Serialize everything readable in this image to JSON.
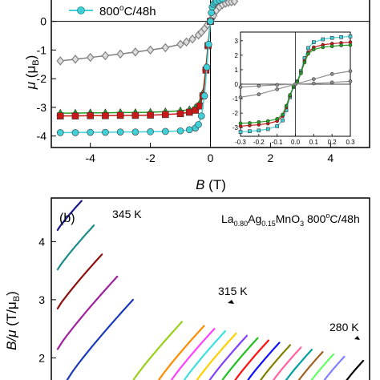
{
  "chart_data": [
    {
      "type": "line",
      "panel_label": "",
      "xlabel": {
        "symbol": "B",
        "unit": "(T)"
      },
      "ylabel": {
        "symbol": "μ",
        "unit": "(μ",
        "unit_sub": "B",
        "unit_close": ")"
      },
      "xlim": [
        -5.3,
        5.3
      ],
      "ylim": [
        -4.4,
        0.8
      ],
      "x_ticks": [
        -4,
        -2,
        0,
        2,
        4
      ],
      "x_tick_labels": [
        "-4",
        "-2",
        "0",
        "2",
        "4"
      ],
      "y_ticks": [
        0,
        -1,
        -2,
        -3,
        -4
      ],
      "y_tick_labels": [
        "0",
        "-1",
        "-2",
        "-3",
        "-4"
      ],
      "legend": {
        "text": "800",
        "sup": "o",
        "tail": "C/48h",
        "color": "#40d0d8",
        "placement": "top-left"
      },
      "series": [
        {
          "marker": "diamond",
          "color": "#808080",
          "x": [
            -5.0,
            -4.5,
            -4.0,
            -3.5,
            -3.0,
            -2.5,
            -2.0,
            -1.5,
            -1.0,
            -0.8,
            -0.6,
            -0.4,
            -0.3,
            -0.2,
            -0.1,
            0.0
          ],
          "y": [
            -1.38,
            -1.32,
            -1.26,
            -1.2,
            -1.14,
            -1.07,
            -1.0,
            -0.92,
            -0.8,
            -0.72,
            -0.62,
            -0.48,
            -0.38,
            -0.26,
            -0.12,
            0.0
          ]
        },
        {
          "marker": "diamond",
          "color": "#808080",
          "x": [
            0.05,
            0.1,
            0.2,
            0.3,
            0.4,
            0.5,
            0.6,
            0.7,
            0.8
          ],
          "y": [
            0.1,
            0.2,
            0.38,
            0.5,
            0.58,
            0.63,
            0.66,
            0.68,
            0.7
          ]
        },
        {
          "marker": "triangle",
          "color": "#20a020",
          "x": [
            -5.0,
            -4.5,
            -4.0,
            -3.5,
            -3.0,
            -2.5,
            -2.0,
            -1.5,
            -1.0,
            -0.7,
            -0.5,
            -0.35,
            -0.25,
            -0.15,
            -0.08,
            0.0
          ],
          "y": [
            -3.2,
            -3.2,
            -3.19,
            -3.19,
            -3.18,
            -3.18,
            -3.17,
            -3.15,
            -3.12,
            -3.08,
            -3.0,
            -2.85,
            -2.5,
            -1.6,
            -0.8,
            0.0
          ]
        },
        {
          "marker": "square",
          "color": "#c81818",
          "x": [
            -5.0,
            -4.5,
            -4.0,
            -3.5,
            -3.0,
            -2.5,
            -2.0,
            -1.5,
            -1.0,
            -0.7,
            -0.5,
            -0.35,
            -0.25,
            -0.15,
            -0.08,
            0.0
          ],
          "y": [
            -3.3,
            -3.3,
            -3.29,
            -3.29,
            -3.28,
            -3.28,
            -3.27,
            -3.25,
            -3.22,
            -3.17,
            -3.1,
            -2.95,
            -2.6,
            -1.7,
            -0.85,
            0.0
          ]
        },
        {
          "marker": "circle",
          "color": "#40d0d8",
          "x": [
            -5.0,
            -4.5,
            -4.0,
            -3.5,
            -3.0,
            -2.5,
            -2.0,
            -1.5,
            -1.0,
            -0.7,
            -0.5,
            -0.4,
            -0.3,
            -0.2,
            -0.12,
            -0.06,
            0.0
          ],
          "y": [
            -3.88,
            -3.88,
            -3.87,
            -3.87,
            -3.86,
            -3.86,
            -3.85,
            -3.84,
            -3.82,
            -3.78,
            -3.72,
            -3.6,
            -3.3,
            -2.6,
            -1.6,
            -0.8,
            0.0
          ]
        },
        {
          "marker": "circle",
          "color": "#40d0d8",
          "x": [
            0.03,
            0.06,
            0.1,
            0.15,
            0.2,
            0.3,
            0.4
          ],
          "y": [
            0.3,
            0.5,
            0.6,
            0.66,
            0.7,
            0.74,
            0.78
          ]
        }
      ],
      "inset": {
        "xlim": [
          -0.3,
          0.3
        ],
        "ylim": [
          -3.6,
          3.6
        ],
        "x_ticks": [
          -0.3,
          -0.2,
          -0.1,
          0.0,
          0.1,
          0.2,
          0.3
        ],
        "x_tick_labels": [
          "-0.3",
          "-0.2",
          "-0.1",
          "0.0",
          "0.1",
          "0.2",
          "0.3"
        ],
        "y_ticks": [
          3,
          2,
          1,
          0,
          -1,
          -2,
          -3
        ],
        "y_tick_labels": [
          "3",
          "2",
          "1",
          "0",
          "-1",
          "-2",
          "-3"
        ],
        "series": [
          {
            "color": "#40d0d8",
            "marker": "square",
            "x": [
              -0.3,
              -0.25,
              -0.2,
              -0.15,
              -0.1,
              -0.07,
              -0.05,
              -0.03,
              -0.01,
              0.01,
              0.03,
              0.05,
              0.07,
              0.1,
              0.15,
              0.2,
              0.25,
              0.3
            ],
            "y": [
              -3.3,
              -3.25,
              -3.2,
              -3.1,
              -2.9,
              -2.5,
              -1.8,
              -0.9,
              -0.2,
              0.2,
              0.9,
              1.8,
              2.5,
              2.9,
              3.1,
              3.2,
              3.25,
              3.3
            ]
          },
          {
            "color": "#c81818",
            "marker": "circle",
            "x": [
              -0.3,
              -0.25,
              -0.2,
              -0.15,
              -0.1,
              -0.07,
              -0.05,
              -0.03,
              -0.01,
              0.01,
              0.03,
              0.05,
              0.07,
              0.1,
              0.15,
              0.2,
              0.25,
              0.3
            ],
            "y": [
              -2.9,
              -2.85,
              -2.8,
              -2.72,
              -2.55,
              -2.2,
              -1.6,
              -0.8,
              -0.15,
              0.15,
              0.8,
              1.6,
              2.2,
              2.55,
              2.72,
              2.8,
              2.85,
              2.9
            ]
          },
          {
            "color": "#20a020",
            "marker": "circle",
            "x": [
              -0.3,
              -0.25,
              -0.2,
              -0.15,
              -0.1,
              -0.07,
              -0.05,
              -0.03,
              -0.01,
              0.01,
              0.03,
              0.05,
              0.07,
              0.1,
              0.15,
              0.2,
              0.25,
              0.3
            ],
            "y": [
              -2.7,
              -2.68,
              -2.62,
              -2.55,
              -2.4,
              -2.1,
              -1.5,
              -0.75,
              -0.12,
              0.12,
              0.75,
              1.5,
              2.1,
              2.4,
              2.55,
              2.62,
              2.68,
              2.7
            ]
          },
          {
            "color": "#909090",
            "marker": "circle",
            "x": [
              -0.3,
              -0.2,
              -0.1,
              0.0,
              0.1,
              0.2,
              0.3
            ],
            "y": [
              -0.9,
              -0.7,
              -0.35,
              0.0,
              0.35,
              0.7,
              0.9
            ]
          },
          {
            "color": "#909090",
            "marker": "circle",
            "x": [
              -0.3,
              -0.2,
              -0.1,
              0.0,
              0.1,
              0.2,
              0.3
            ],
            "y": [
              -0.2,
              -0.12,
              -0.05,
              0.0,
              0.05,
              0.12,
              0.2
            ]
          }
        ]
      }
    },
    {
      "type": "line",
      "panel_label": "(b)",
      "xlabel": "",
      "ylabel": {
        "symbol": "B/μ",
        "unit": "(T/μ",
        "unit_sub": "B",
        "unit_close": ")"
      },
      "ylim": [
        1.55,
        4.75
      ],
      "y_ticks": [
        4,
        3,
        2
      ],
      "y_tick_labels": [
        "4",
        "3",
        "2"
      ],
      "annotation": {
        "parts": [
          "La",
          "0.80",
          "Ag",
          "0.15",
          "MnO",
          "3",
          " 800",
          "o",
          "C/48h"
        ]
      },
      "temperature_labels": [
        "345 K",
        "315 K",
        "280 K"
      ],
      "curves": [
        {
          "color": "#1a1a8c",
          "x0": 0.02,
          "y0": 4.2,
          "y1": 4.7
        },
        {
          "color": "#1f8c8c",
          "x0": 0.02,
          "y0": 3.52,
          "y1": 4.28
        },
        {
          "color": "#8c1010",
          "x0": 0.02,
          "y0": 2.85,
          "y1": 3.78
        },
        {
          "color": "#a020a0",
          "x0": 0.02,
          "y0": 2.15,
          "y1": 3.4
        },
        {
          "color": "#1a3ab8",
          "x0": 0.05,
          "y0": 1.62,
          "y1": 3.0
        },
        {
          "color": "#98d018",
          "x0": 0.25,
          "y0": 1.55,
          "y1": 2.62
        },
        {
          "color": "#ff8c00",
          "x0": 0.33,
          "y0": 1.55,
          "y1": 2.55
        },
        {
          "color": "#ff40ff",
          "x0": 0.37,
          "y0": 1.55,
          "y1": 2.5
        },
        {
          "color": "#40e0e0",
          "x0": 0.41,
          "y0": 1.55,
          "y1": 2.46
        },
        {
          "color": "#ffd000",
          "x0": 0.45,
          "y0": 1.55,
          "y1": 2.42
        },
        {
          "color": "#8040ff",
          "x0": 0.49,
          "y0": 1.55,
          "y1": 2.38
        },
        {
          "color": "#20c020",
          "x0": 0.53,
          "y0": 1.55,
          "y1": 2.34
        },
        {
          "color": "#ff1010",
          "x0": 0.57,
          "y0": 1.55,
          "y1": 2.3
        },
        {
          "color": "#1010ff",
          "x0": 0.61,
          "y0": 1.55,
          "y1": 2.26
        },
        {
          "color": "#808000",
          "x0": 0.65,
          "y0": 1.55,
          "y1": 2.22
        },
        {
          "color": "#ff60a0",
          "x0": 0.69,
          "y0": 1.55,
          "y1": 2.18
        },
        {
          "color": "#00a0a0",
          "x0": 0.73,
          "y0": 1.55,
          "y1": 2.14
        },
        {
          "color": "#a06020",
          "x0": 0.77,
          "y0": 1.55,
          "y1": 2.1
        },
        {
          "color": "#60ff60",
          "x0": 0.81,
          "y0": 1.55,
          "y1": 2.06
        },
        {
          "color": "#8080ff",
          "x0": 0.85,
          "y0": 1.55,
          "y1": 2.02
        },
        {
          "color": "#000000",
          "x0": 0.92,
          "y0": 1.55,
          "y1": 1.95
        }
      ]
    }
  ]
}
